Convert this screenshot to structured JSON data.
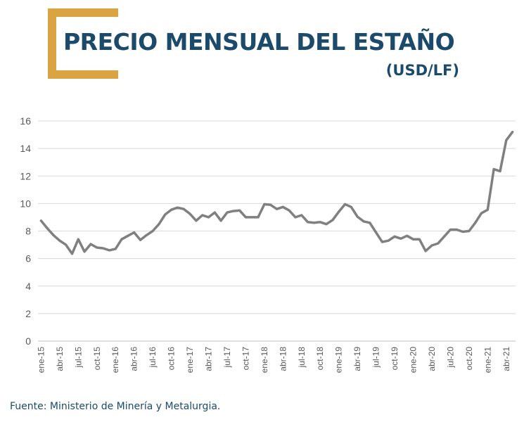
{
  "header": {
    "title": "PRECIO MENSUAL DEL ESTAÑO",
    "subtitle": "(USD/LF)"
  },
  "footer": {
    "source": "Fuente: Ministerio de Minería y Metalurgia."
  },
  "colors": {
    "accent": "#d9a441",
    "title": "#1b4a6b",
    "line": "#808080",
    "grid": "#d9d9d9",
    "axis_text": "#595959"
  },
  "chart_data": {
    "type": "line",
    "title": "PRECIO MENSUAL DEL ESTAÑO",
    "ylabel": "USD/LF",
    "xlabel": "",
    "ylim": [
      0,
      16
    ],
    "yticks": [
      0,
      2,
      4,
      6,
      8,
      10,
      12,
      14,
      16
    ],
    "grid": true,
    "x": [
      "ene-15",
      "feb-15",
      "mar-15",
      "abr-15",
      "may-15",
      "jun-15",
      "jul-15",
      "ago-15",
      "sep-15",
      "oct-15",
      "nov-15",
      "dic-15",
      "ene-16",
      "feb-16",
      "mar-16",
      "abr-16",
      "may-16",
      "jun-16",
      "jul-16",
      "ago-16",
      "sep-16",
      "oct-16",
      "nov-16",
      "dic-16",
      "ene-17",
      "feb-17",
      "mar-17",
      "abr-17",
      "may-17",
      "jun-17",
      "jul-17",
      "ago-17",
      "sep-17",
      "oct-17",
      "nov-17",
      "dic-17",
      "ene-18",
      "feb-18",
      "mar-18",
      "abr-18",
      "may-18",
      "jun-18",
      "jul-18",
      "ago-18",
      "sep-18",
      "oct-18",
      "nov-18",
      "dic-18",
      "ene-19",
      "feb-19",
      "mar-19",
      "abr-19",
      "may-19",
      "jun-19",
      "jul-19",
      "ago-19",
      "sep-19",
      "oct-19",
      "nov-19",
      "dic-19",
      "ene-20",
      "feb-20",
      "mar-20",
      "abr-20",
      "may-20",
      "jun-20",
      "jul-20",
      "ago-20",
      "sep-20",
      "oct-20",
      "nov-20",
      "dic-20",
      "ene-21",
      "feb-21",
      "mar-21",
      "abr-21",
      "may-21"
    ],
    "tick_labels": [
      "ene-15",
      "abr-15",
      "jul-15",
      "oct-15",
      "ene-16",
      "abr-16",
      "jul-16",
      "oct-16",
      "ene-17",
      "abr-17",
      "jul-17",
      "oct-17",
      "ene-18",
      "abr-18",
      "jul-18",
      "oct-18",
      "ene-19",
      "abr-19",
      "jul-19",
      "oct-19",
      "ene-20",
      "abr-20",
      "jul-20",
      "oct-20",
      "ene-21",
      "abr-21"
    ],
    "series": [
      {
        "name": "Estaño (USD/LF)",
        "values": [
          8.75,
          8.2,
          7.7,
          7.3,
          7.0,
          6.35,
          7.4,
          6.5,
          7.05,
          6.8,
          6.75,
          6.6,
          6.7,
          7.4,
          7.65,
          7.9,
          7.35,
          7.7,
          8.0,
          8.5,
          9.2,
          9.55,
          9.7,
          9.6,
          9.25,
          8.75,
          9.15,
          9.0,
          9.35,
          8.75,
          9.35,
          9.45,
          9.5,
          9.0,
          9.0,
          9.0,
          9.95,
          9.9,
          9.6,
          9.75,
          9.5,
          9.0,
          9.15,
          8.65,
          8.6,
          8.65,
          8.5,
          8.8,
          9.4,
          9.95,
          9.75,
          9.05,
          8.7,
          8.6,
          7.9,
          7.2,
          7.3,
          7.6,
          7.45,
          7.65,
          7.4,
          7.4,
          6.55,
          6.95,
          7.1,
          7.6,
          8.1,
          8.1,
          7.95,
          8.0,
          8.6,
          9.3,
          9.55,
          12.5,
          12.35,
          14.6,
          15.2
        ]
      }
    ]
  }
}
